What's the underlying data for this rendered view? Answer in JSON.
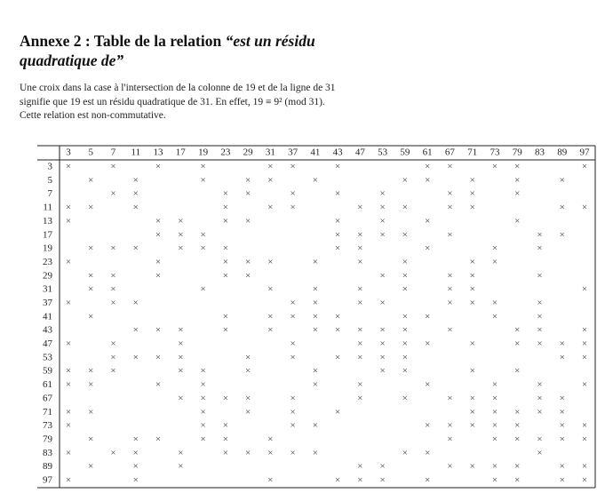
{
  "header": {
    "title": "Annexe 2 : Table de la relation",
    "title_quote": "“est un résidu quadratique de”"
  },
  "paragraph": [
    "Une croix dans la case à l'intersection de la colonne de 19 et de la ligne de 31",
    "signifie que 19 est un résidu quadratique de 31. En effet, 19 ≡ 9² (mod 31).",
    "Cette relation est non-commutative."
  ],
  "table": {
    "mark": "×",
    "columns": [
      3,
      5,
      7,
      11,
      13,
      17,
      19,
      23,
      29,
      31,
      37,
      41,
      43,
      47,
      53,
      59,
      61,
      67,
      71,
      73,
      79,
      83,
      89,
      97
    ],
    "rows": [
      {
        "label": 3,
        "crosses": [
          3,
          7,
          13,
          19,
          31,
          37,
          43,
          61,
          67,
          73,
          79,
          97
        ]
      },
      {
        "label": 5,
        "crosses": [
          5,
          11,
          19,
          29,
          31,
          41,
          59,
          61,
          71,
          79,
          89
        ]
      },
      {
        "label": 7,
        "crosses": [
          7,
          11,
          23,
          29,
          37,
          43,
          53,
          67,
          71,
          79
        ]
      },
      {
        "label": 11,
        "crosses": [
          3,
          5,
          11,
          23,
          31,
          37,
          47,
          53,
          59,
          67,
          71,
          89,
          97
        ]
      },
      {
        "label": 13,
        "crosses": [
          3,
          13,
          17,
          23,
          29,
          43,
          53,
          61,
          79
        ]
      },
      {
        "label": 17,
        "crosses": [
          13,
          17,
          19,
          43,
          47,
          53,
          59,
          67,
          83,
          89
        ]
      },
      {
        "label": 19,
        "crosses": [
          5,
          7,
          11,
          17,
          19,
          23,
          43,
          47,
          61,
          73,
          83
        ]
      },
      {
        "label": 23,
        "crosses": [
          3,
          13,
          23,
          29,
          31,
          41,
          47,
          59,
          71,
          73
        ]
      },
      {
        "label": 29,
        "crosses": [
          5,
          7,
          13,
          23,
          29,
          53,
          59,
          67,
          71,
          83
        ]
      },
      {
        "label": 31,
        "crosses": [
          5,
          7,
          19,
          31,
          41,
          47,
          59,
          67,
          71,
          97
        ]
      },
      {
        "label": 37,
        "crosses": [
          3,
          7,
          11,
          37,
          41,
          47,
          53,
          67,
          71,
          73,
          83
        ]
      },
      {
        "label": 41,
        "crosses": [
          5,
          23,
          31,
          37,
          41,
          43,
          59,
          61,
          73,
          83
        ]
      },
      {
        "label": 43,
        "crosses": [
          11,
          13,
          17,
          23,
          31,
          41,
          43,
          47,
          53,
          59,
          67,
          79,
          83,
          97
        ]
      },
      {
        "label": 47,
        "crosses": [
          3,
          7,
          17,
          37,
          47,
          53,
          59,
          61,
          71,
          79,
          83,
          89,
          97
        ]
      },
      {
        "label": 53,
        "crosses": [
          7,
          11,
          13,
          17,
          29,
          37,
          43,
          47,
          53,
          59,
          89,
          97
        ]
      },
      {
        "label": 59,
        "crosses": [
          3,
          5,
          7,
          17,
          19,
          29,
          41,
          53,
          59,
          71,
          79
        ]
      },
      {
        "label": 61,
        "crosses": [
          3,
          5,
          13,
          19,
          41,
          47,
          61,
          73,
          83,
          97
        ]
      },
      {
        "label": 67,
        "crosses": [
          17,
          19,
          23,
          29,
          37,
          47,
          59,
          67,
          71,
          73,
          83,
          89
        ]
      },
      {
        "label": 71,
        "crosses": [
          3,
          5,
          19,
          29,
          37,
          43,
          71,
          73,
          79,
          83,
          89
        ]
      },
      {
        "label": 73,
        "crosses": [
          3,
          19,
          23,
          37,
          41,
          61,
          67,
          71,
          73,
          79,
          89,
          97
        ]
      },
      {
        "label": 79,
        "crosses": [
          5,
          11,
          13,
          19,
          23,
          31,
          67,
          73,
          79,
          83,
          89,
          97
        ]
      },
      {
        "label": 83,
        "crosses": [
          3,
          7,
          11,
          17,
          23,
          29,
          31,
          37,
          41,
          59,
          61,
          83
        ]
      },
      {
        "label": 89,
        "crosses": [
          5,
          11,
          17,
          47,
          53,
          67,
          71,
          73,
          79,
          89,
          97
        ]
      },
      {
        "label": 97,
        "crosses": [
          3,
          11,
          31,
          43,
          47,
          53,
          61,
          73,
          79,
          89,
          97
        ]
      }
    ]
  }
}
